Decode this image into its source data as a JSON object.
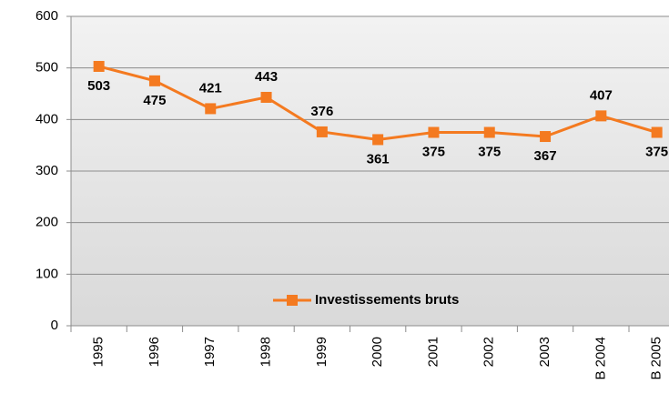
{
  "chart_data": {
    "type": "line",
    "categories": [
      "1995",
      "1996",
      "1997",
      "1998",
      "1999",
      "2000",
      "2001",
      "2002",
      "2003",
      "B 2004",
      "B 2005"
    ],
    "series": [
      {
        "name": "Investissements bruts",
        "color": "#f47a20",
        "values": [
          503,
          475,
          421,
          443,
          376,
          361,
          375,
          375,
          367,
          407,
          375
        ]
      }
    ],
    "ylim": [
      0,
      600
    ],
    "yticks": [
      0,
      100,
      200,
      300,
      400,
      500,
      600
    ],
    "grid": true,
    "legend": "bottom"
  }
}
